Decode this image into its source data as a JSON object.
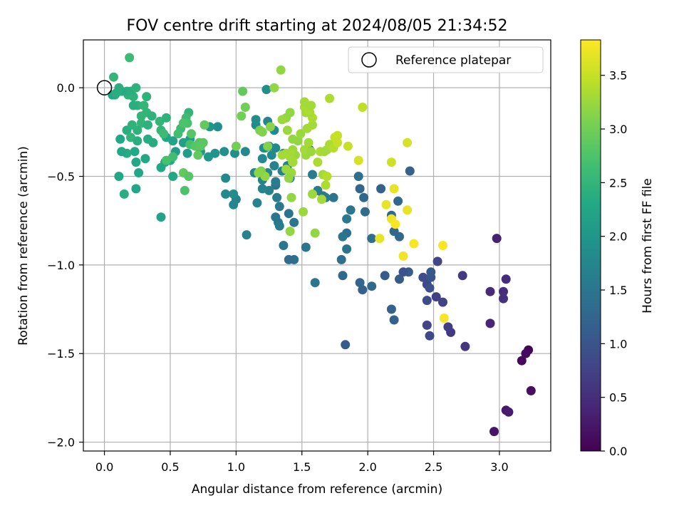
{
  "chart_data": {
    "type": "scatter",
    "title": "FOV centre drift starting at 2024/08/05 21:34:52",
    "xlabel": "Angular distance from reference (arcmin)",
    "ylabel": "Rotation from reference (arcmin)",
    "colorbar_label": "Hours from first FF file",
    "xlim": [
      -0.16,
      3.39
    ],
    "ylim": [
      -2.05,
      0.27
    ],
    "clim": [
      0,
      3.83
    ],
    "colormap": "viridis",
    "grid": true,
    "legend_position": "upper-right",
    "x_ticks": [
      0.0,
      0.5,
      1.0,
      1.5,
      2.0,
      2.5,
      3.0
    ],
    "x_tick_labels": [
      "0.0",
      "0.5",
      "1.0",
      "1.5",
      "2.0",
      "2.5",
      "3.0"
    ],
    "y_ticks": [
      0.0,
      -0.5,
      -1.0,
      -1.5,
      -2.0
    ],
    "y_tick_labels": [
      "0.0",
      "−0.5",
      "−1.0",
      "−1.5",
      "−2.0"
    ],
    "c_ticks": [
      0.0,
      0.5,
      1.0,
      1.5,
      2.0,
      2.5,
      3.0,
      3.5
    ],
    "c_tick_labels": [
      "0.0",
      "0.5",
      "1.0",
      "1.5",
      "2.0",
      "2.5",
      "3.0",
      "3.5"
    ],
    "reference": {
      "x": 0.0,
      "y": 0.0,
      "label": "Reference platepar"
    },
    "points": [
      [
        3.22,
        -1.48,
        0.05
      ],
      [
        3.2,
        -1.5,
        0.1
      ],
      [
        3.17,
        -1.54,
        0.08
      ],
      [
        3.24,
        -1.71,
        0.15
      ],
      [
        3.05,
        -1.82,
        0.25
      ],
      [
        3.07,
        -1.83,
        0.3
      ],
      [
        2.96,
        -1.94,
        0.22
      ],
      [
        2.93,
        -1.33,
        0.4
      ],
      [
        2.93,
        -1.15,
        0.45
      ],
      [
        2.98,
        -0.85,
        0.35
      ],
      [
        3.03,
        -1.15,
        0.5
      ],
      [
        3.03,
        -1.19,
        0.55
      ],
      [
        3.05,
        -1.08,
        0.48
      ],
      [
        2.74,
        -1.46,
        0.6
      ],
      [
        2.72,
        -1.06,
        0.65
      ],
      [
        2.63,
        -1.38,
        0.62
      ],
      [
        2.61,
        -1.35,
        0.7
      ],
      [
        2.57,
        -1.21,
        0.75
      ],
      [
        2.52,
        -1.18,
        0.72
      ],
      [
        2.53,
        -0.98,
        0.8
      ],
      [
        2.47,
        -1.4,
        0.85
      ],
      [
        2.45,
        -1.34,
        0.8
      ],
      [
        2.45,
        -1.2,
        0.9
      ],
      [
        2.45,
        -1.11,
        0.85
      ],
      [
        2.47,
        -1.13,
        0.95
      ],
      [
        2.42,
        -1.07,
        0.9
      ],
      [
        2.48,
        -1.07,
        1.0
      ],
      [
        2.48,
        -1.04,
        1.05
      ],
      [
        2.31,
        -1.04,
        1.1
      ],
      [
        2.27,
        -1.04,
        1.0
      ],
      [
        2.24,
        -1.08,
        1.1
      ],
      [
        2.2,
        -1.31,
        1.2
      ],
      [
        2.18,
        -1.25,
        1.2
      ],
      [
        2.13,
        -1.06,
        1.1
      ],
      [
        2.24,
        -0.84,
        1.3
      ],
      [
        2.2,
        -0.81,
        1.25
      ],
      [
        2.18,
        -0.72,
        1.3
      ],
      [
        2.1,
        -0.57,
        1.2
      ],
      [
        2.23,
        -0.64,
        1.3
      ],
      [
        2.32,
        -0.47,
        1.2
      ],
      [
        1.97,
        -0.62,
        1.3
      ],
      [
        1.94,
        -0.57,
        1.25
      ],
      [
        1.98,
        -0.7,
        1.35
      ],
      [
        2.03,
        -0.85,
        1.4
      ],
      [
        2.03,
        -1.12,
        1.3
      ],
      [
        1.96,
        -1.14,
        1.2
      ],
      [
        1.94,
        -1.1,
        1.25
      ],
      [
        1.83,
        -1.45,
        1.1
      ],
      [
        1.81,
        -1.06,
        1.3
      ],
      [
        1.8,
        -0.97,
        1.4
      ],
      [
        1.84,
        -0.91,
        1.45
      ],
      [
        1.84,
        -0.82,
        1.4
      ],
      [
        1.81,
        -0.84,
        1.5
      ],
      [
        1.84,
        -0.74,
        1.55
      ],
      [
        1.87,
        -0.69,
        1.5
      ],
      [
        1.93,
        -0.5,
        1.4
      ],
      [
        1.74,
        -0.62,
        1.5
      ],
      [
        1.68,
        -0.62,
        1.6
      ],
      [
        1.66,
        -0.61,
        1.55
      ],
      [
        1.62,
        -0.58,
        1.6
      ],
      [
        1.6,
        -1.1,
        1.5
      ],
      [
        1.53,
        -0.9,
        1.5
      ],
      [
        1.58,
        -0.49,
        1.6
      ],
      [
        1.56,
        -0.35,
        1.65
      ],
      [
        1.53,
        -0.35,
        1.6
      ],
      [
        1.44,
        -0.97,
        1.4
      ],
      [
        1.4,
        -0.97,
        1.35
      ],
      [
        1.44,
        -0.76,
        1.5
      ],
      [
        1.4,
        -0.71,
        1.45
      ],
      [
        1.36,
        -0.89,
        1.5
      ],
      [
        1.32,
        -0.76,
        1.55
      ],
      [
        1.3,
        -0.73,
        1.5
      ],
      [
        1.33,
        -0.78,
        1.6
      ],
      [
        1.33,
        -0.67,
        1.55
      ],
      [
        1.31,
        -0.62,
        1.6
      ],
      [
        1.3,
        -0.55,
        1.5
      ],
      [
        1.3,
        -0.53,
        1.6
      ],
      [
        1.25,
        -0.58,
        1.65
      ],
      [
        1.2,
        -0.57,
        1.7
      ],
      [
        1.2,
        -0.52,
        1.7
      ],
      [
        1.24,
        -0.48,
        1.75
      ],
      [
        1.29,
        -0.44,
        1.7
      ],
      [
        1.27,
        -0.38,
        1.8
      ],
      [
        1.35,
        -0.47,
        1.7
      ],
      [
        1.39,
        -0.44,
        1.65
      ],
      [
        1.41,
        -0.51,
        1.6
      ],
      [
        1.43,
        -0.42,
        1.7
      ],
      [
        1.36,
        -0.37,
        1.75
      ],
      [
        1.3,
        -0.34,
        1.8
      ],
      [
        1.25,
        -0.33,
        1.8
      ],
      [
        1.21,
        -0.34,
        1.85
      ],
      [
        1.16,
        -0.65,
        1.7
      ],
      [
        1.14,
        -0.48,
        1.75
      ],
      [
        1.2,
        -0.4,
        1.8
      ],
      [
        1.22,
        -0.34,
        1.85
      ],
      [
        1.29,
        -0.24,
        1.8
      ],
      [
        1.24,
        -0.19,
        1.75
      ],
      [
        1.15,
        -0.21,
        1.8
      ],
      [
        1.15,
        -0.18,
        1.85
      ],
      [
        1.23,
        -0.01,
        1.85
      ],
      [
        1.07,
        -0.36,
        1.8
      ],
      [
        0.99,
        -0.37,
        1.85
      ],
      [
        1.0,
        -0.63,
        1.7
      ],
      [
        0.98,
        -0.66,
        1.75
      ],
      [
        0.92,
        -0.6,
        1.8
      ],
      [
        0.92,
        -0.51,
        1.8
      ],
      [
        0.98,
        -0.6,
        1.85
      ],
      [
        1.08,
        -0.83,
        1.7
      ],
      [
        0.91,
        -0.36,
        1.9
      ],
      [
        0.84,
        -0.37,
        1.95
      ],
      [
        0.79,
        -0.39,
        2.0
      ],
      [
        0.86,
        -0.22,
        1.9
      ],
      [
        0.8,
        -0.22,
        2.0
      ],
      [
        0.73,
        -0.36,
        2.05
      ],
      [
        0.63,
        -0.37,
        2.1
      ],
      [
        0.65,
        -0.29,
        2.1
      ],
      [
        0.6,
        -0.31,
        2.15
      ],
      [
        0.54,
        -0.36,
        2.1
      ],
      [
        0.52,
        -0.3,
        2.2
      ],
      [
        0.46,
        -0.42,
        2.2
      ],
      [
        0.5,
        -0.41,
        2.3
      ],
      [
        0.52,
        -0.5,
        2.3
      ],
      [
        0.47,
        -0.28,
        2.25
      ],
      [
        0.43,
        -0.45,
        2.3
      ],
      [
        0.43,
        -0.73,
        2.2
      ],
      [
        0.37,
        -0.31,
        2.35
      ],
      [
        0.33,
        -0.29,
        2.35
      ],
      [
        0.31,
        -0.4,
        2.3
      ],
      [
        0.26,
        -0.48,
        2.3
      ],
      [
        0.24,
        -0.42,
        2.3
      ],
      [
        0.23,
        -0.36,
        2.3
      ],
      [
        0.17,
        -0.37,
        2.35
      ],
      [
        0.13,
        -0.36,
        2.3
      ],
      [
        0.12,
        -0.29,
        2.3
      ],
      [
        0.11,
        -0.5,
        2.3
      ],
      [
        0.15,
        -0.6,
        2.4
      ],
      [
        0.24,
        -0.57,
        2.3
      ],
      [
        0.17,
        -0.24,
        2.4
      ],
      [
        0.21,
        -0.21,
        2.45
      ],
      [
        0.2,
        -0.28,
        2.5
      ],
      [
        0.25,
        -0.3,
        2.4
      ],
      [
        0.25,
        -0.24,
        2.45
      ],
      [
        0.28,
        -0.2,
        2.5
      ],
      [
        0.33,
        -0.21,
        2.45
      ],
      [
        0.32,
        -0.14,
        2.5
      ],
      [
        0.36,
        -0.16,
        2.45
      ],
      [
        0.28,
        -0.16,
        2.5
      ],
      [
        0.25,
        -0.1,
        2.45
      ],
      [
        0.32,
        -0.05,
        2.45
      ],
      [
        0.3,
        -0.1,
        2.5
      ],
      [
        0.42,
        -0.19,
        2.5
      ],
      [
        0.47,
        -0.17,
        2.45
      ],
      [
        0.43,
        -0.24,
        2.5
      ],
      [
        0.22,
        -0.1,
        2.4
      ],
      [
        0.22,
        -0.05,
        2.45
      ],
      [
        0.2,
        -0.02,
        2.4
      ],
      [
        0.24,
        0.0,
        2.45
      ],
      [
        0.18,
        -0.04,
        2.45
      ],
      [
        0.17,
        -0.02,
        2.4
      ],
      [
        0.13,
        -0.02,
        2.35
      ],
      [
        0.11,
        0.0,
        2.4
      ],
      [
        0.08,
        -0.04,
        2.35
      ],
      [
        0.06,
        -0.04,
        2.3
      ],
      [
        0.09,
        -0.03,
        2.4
      ],
      [
        0.07,
        0.06,
        2.5
      ],
      [
        0.19,
        0.17,
        2.6
      ],
      [
        0.64,
        -0.14,
        2.5
      ],
      [
        0.62,
        -0.17,
        2.6
      ],
      [
        0.6,
        -0.2,
        2.8
      ],
      [
        0.63,
        -0.2,
        2.7
      ],
      [
        0.58,
        -0.23,
        2.6
      ],
      [
        0.56,
        -0.26,
        2.65
      ],
      [
        0.66,
        -0.26,
        2.8
      ],
      [
        0.65,
        -0.32,
        2.7
      ],
      [
        0.69,
        -0.33,
        2.8
      ],
      [
        0.72,
        -0.31,
        2.8
      ],
      [
        0.73,
        -0.33,
        2.85
      ],
      [
        0.75,
        -0.31,
        2.85
      ],
      [
        0.71,
        -0.38,
        2.9
      ],
      [
        0.6,
        -0.48,
        2.9
      ],
      [
        0.61,
        -0.58,
        2.75
      ],
      [
        0.64,
        -0.5,
        2.8
      ],
      [
        0.52,
        -0.39,
        2.65
      ],
      [
        0.47,
        -0.41,
        2.7
      ],
      [
        0.45,
        -0.26,
        2.6
      ],
      [
        0.6,
        -0.2,
        2.75
      ],
      [
        0.76,
        -0.21,
        2.9
      ],
      [
        1.0,
        -0.33,
        3.0
      ],
      [
        1.04,
        -0.16,
        3.0
      ],
      [
        1.05,
        -0.02,
        2.9
      ],
      [
        1.07,
        -0.11,
        3.0
      ],
      [
        1.18,
        -0.24,
        3.05
      ],
      [
        1.2,
        -0.25,
        3.1
      ],
      [
        1.24,
        -0.33,
        3.1
      ],
      [
        1.19,
        -0.47,
        3.1
      ],
      [
        1.22,
        -0.5,
        3.2
      ],
      [
        1.17,
        -0.48,
        3.15
      ],
      [
        1.26,
        -0.22,
        3.15
      ],
      [
        1.29,
        0.0,
        3.2
      ],
      [
        1.34,
        0.1,
        3.2
      ],
      [
        1.41,
        -0.14,
        3.2
      ],
      [
        1.38,
        -0.17,
        3.2
      ],
      [
        1.35,
        -0.18,
        3.25
      ],
      [
        1.39,
        -0.24,
        3.25
      ],
      [
        1.43,
        -0.29,
        3.2
      ],
      [
        1.47,
        -0.3,
        3.2
      ],
      [
        1.43,
        -0.35,
        3.25
      ],
      [
        1.45,
        -0.38,
        3.25
      ],
      [
        1.38,
        -0.37,
        3.3
      ],
      [
        1.41,
        -0.37,
        3.3
      ],
      [
        1.43,
        -0.42,
        3.3
      ],
      [
        1.42,
        -0.48,
        3.25
      ],
      [
        1.4,
        -0.51,
        3.2
      ],
      [
        1.38,
        -0.46,
        3.25
      ],
      [
        1.35,
        -0.38,
        3.3
      ],
      [
        1.41,
        -0.39,
        3.3
      ],
      [
        1.42,
        -0.62,
        3.2
      ],
      [
        1.41,
        -0.81,
        3.2
      ],
      [
        1.51,
        -0.7,
        3.25
      ],
      [
        1.6,
        -0.82,
        3.2
      ],
      [
        1.58,
        -0.6,
        3.25
      ],
      [
        1.53,
        -0.38,
        3.25
      ],
      [
        1.52,
        -0.35,
        3.3
      ],
      [
        1.55,
        -0.31,
        3.3
      ],
      [
        1.57,
        -0.36,
        3.25
      ],
      [
        1.49,
        -0.26,
        3.25
      ],
      [
        1.54,
        -0.23,
        3.3
      ],
      [
        1.58,
        -0.21,
        3.3
      ],
      [
        1.58,
        -0.17,
        3.35
      ],
      [
        1.56,
        -0.14,
        3.3
      ],
      [
        1.52,
        -0.11,
        3.35
      ],
      [
        1.53,
        -0.14,
        3.3
      ],
      [
        1.55,
        -0.13,
        3.35
      ],
      [
        1.52,
        -0.08,
        3.3
      ],
      [
        1.57,
        -0.1,
        3.3
      ],
      [
        1.64,
        -0.36,
        3.35
      ],
      [
        1.67,
        -0.36,
        3.3
      ],
      [
        1.69,
        -0.35,
        3.3
      ],
      [
        1.71,
        -0.32,
        3.35
      ],
      [
        1.74,
        -0.34,
        3.4
      ],
      [
        1.66,
        -0.49,
        3.3
      ],
      [
        1.68,
        -0.55,
        3.35
      ],
      [
        1.65,
        -0.63,
        3.3
      ],
      [
        1.69,
        -0.5,
        3.4
      ],
      [
        1.62,
        -0.42,
        3.35
      ],
      [
        1.71,
        -0.06,
        3.35
      ],
      [
        1.77,
        -0.31,
        3.5
      ],
      [
        1.77,
        -0.27,
        3.5
      ],
      [
        1.75,
        -0.28,
        3.5
      ],
      [
        1.85,
        -0.33,
        3.5
      ],
      [
        1.93,
        -0.41,
        3.6
      ],
      [
        1.96,
        -0.11,
        3.45
      ],
      [
        2.18,
        -0.42,
        3.55
      ],
      [
        2.2,
        -0.57,
        3.7
      ],
      [
        2.14,
        -0.66,
        3.7
      ],
      [
        2.18,
        -0.74,
        3.75
      ],
      [
        2.21,
        -0.77,
        3.8
      ],
      [
        2.09,
        -0.85,
        3.7
      ],
      [
        2.3,
        -0.69,
        3.7
      ],
      [
        2.3,
        -0.31,
        3.6
      ],
      [
        2.27,
        -0.95,
        3.75
      ],
      [
        2.35,
        -0.88,
        3.8
      ],
      [
        2.57,
        -0.89,
        3.8
      ],
      [
        2.58,
        -1.3,
        3.8
      ]
    ]
  }
}
